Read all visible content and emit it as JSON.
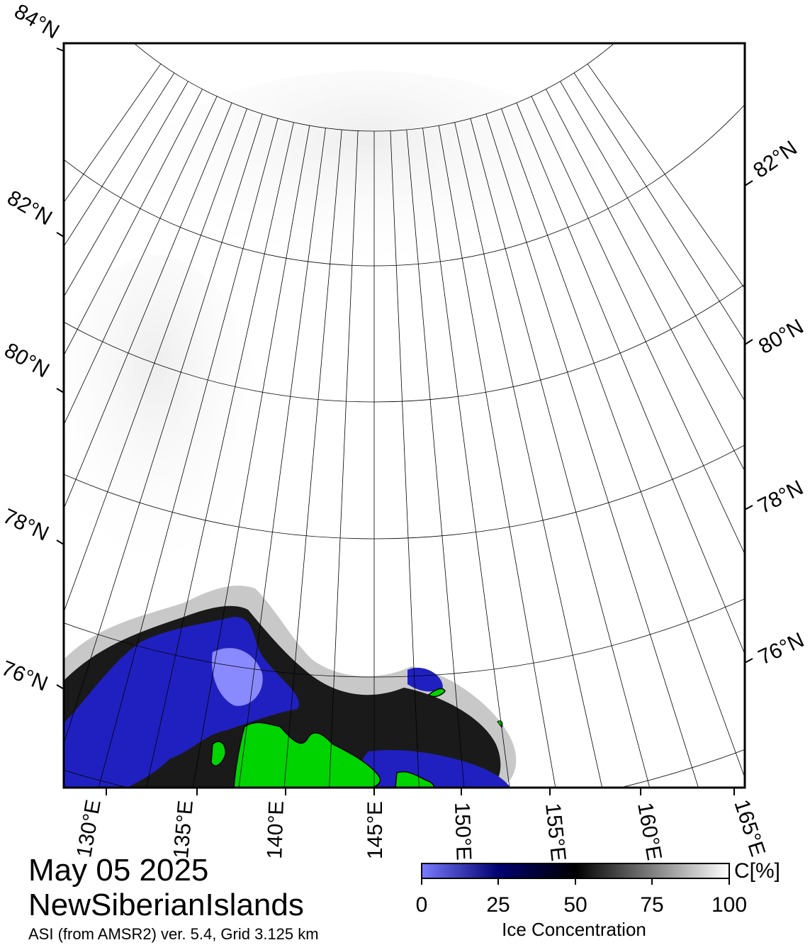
{
  "title": {
    "date": "May 05 2025",
    "region": "NewSiberianIslands",
    "source": "ASI (from AMSR2) ver. 5.4,  Grid 3.125 km"
  },
  "map": {
    "lat_labels_left": [
      "84°N",
      "82°N",
      "80°N",
      "78°N",
      "76°N"
    ],
    "lat_labels_right": [
      "82°N",
      "80°N",
      "78°N",
      "76°N"
    ],
    "lon_labels": [
      "130°E",
      "135°E",
      "140°E",
      "145°E",
      "150°E",
      "155°E",
      "160°E",
      "165°E"
    ],
    "land_color": "#00d400",
    "water_color": "#ffffff"
  },
  "colorbar": {
    "label": "Ice Concentration",
    "unit": "C[%]",
    "ticks": [
      "0",
      "25",
      "50",
      "75",
      "100"
    ],
    "range": [
      0,
      100
    ],
    "colors": [
      "#7a7aff",
      "#000070",
      "#000000",
      "#ffffff"
    ]
  }
}
